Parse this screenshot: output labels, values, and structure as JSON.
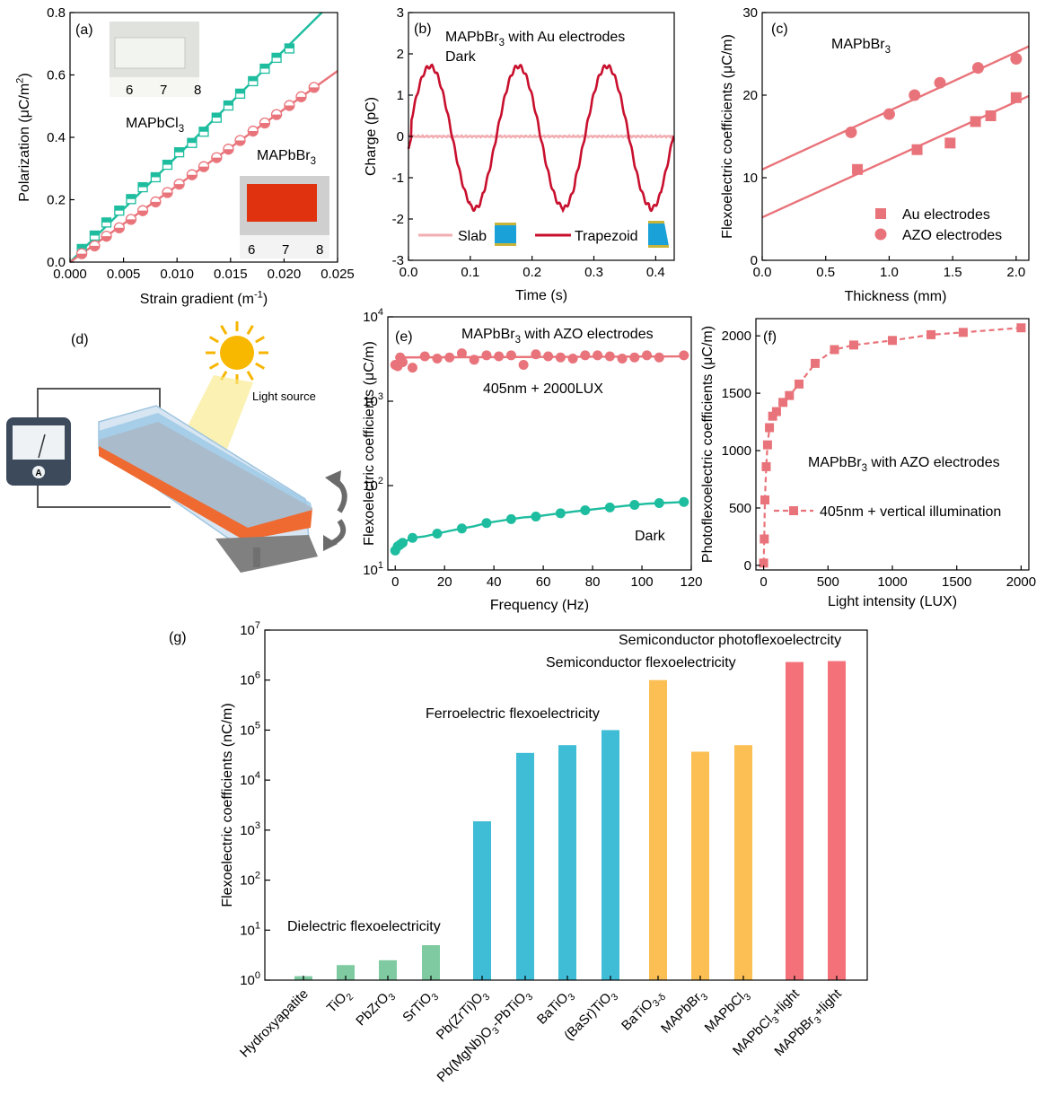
{
  "colors": {
    "teal": "#1ebd9f",
    "pink": "#e9737a",
    "lightpink": "#f2aeb2",
    "darkred": "#c8102e",
    "green_bar": "#7fcaa0",
    "blue_bar": "#3fbcd6",
    "orange_bar": "#fbbf53",
    "red_bar": "#f47179"
  },
  "panels": {
    "a": {
      "label": "(a)"
    },
    "b": {
      "label": "(b)"
    },
    "c": {
      "label": "(c)"
    },
    "d": {
      "label": "(d)",
      "light_source": "Light source",
      "meter_label": "A"
    },
    "e": {
      "label": "(e)"
    },
    "f": {
      "label": "(f)"
    },
    "g": {
      "label": "(g)"
    }
  },
  "chart_data": [
    {
      "id": "a",
      "type": "scatter",
      "xlabel": "Strain gradient (m-1)",
      "ylabel": "Polarization (μC/m2)",
      "xlim": [
        0,
        0.025
      ],
      "ylim": [
        0,
        0.8
      ],
      "xticks": [
        "0.000",
        "0.005",
        "0.010",
        "0.015",
        "0.020",
        "0.025"
      ],
      "yticks": [
        "0.0",
        "0.2",
        "0.4",
        "0.6",
        "0.8"
      ],
      "series": [
        {
          "name": "MAPbCl3",
          "marker": "square-half",
          "color": "#1ebd9f",
          "slope": 34.0,
          "x": [
            0.0011,
            0.0023,
            0.0034,
            0.0046,
            0.0057,
            0.0068,
            0.008,
            0.0091,
            0.0102,
            0.0114,
            0.0125,
            0.0137,
            0.0148,
            0.0159,
            0.0171,
            0.0182,
            0.0193,
            0.0205
          ],
          "y": [
            0.042,
            0.085,
            0.127,
            0.165,
            0.202,
            0.24,
            0.272,
            0.312,
            0.352,
            0.382,
            0.418,
            0.463,
            0.502,
            0.54,
            0.58,
            0.62,
            0.655,
            0.685
          ]
        },
        {
          "name": "MAPbBr3",
          "marker": "circle-half",
          "color": "#e9737a",
          "slope": 24.5,
          "x": [
            0.0011,
            0.0023,
            0.0034,
            0.0046,
            0.0057,
            0.0068,
            0.008,
            0.0091,
            0.0102,
            0.0114,
            0.0125,
            0.0137,
            0.0148,
            0.0159,
            0.0171,
            0.0182,
            0.0193,
            0.0205,
            0.0216,
            0.0228
          ],
          "y": [
            0.027,
            0.052,
            0.083,
            0.11,
            0.137,
            0.165,
            0.193,
            0.223,
            0.25,
            0.28,
            0.306,
            0.335,
            0.362,
            0.39,
            0.42,
            0.446,
            0.473,
            0.502,
            0.53,
            0.56
          ]
        }
      ],
      "annotations": [
        "MAPbCl3",
        "MAPbBr3"
      ],
      "photo_rulers": [
        [
          "6",
          "7",
          "8"
        ],
        [
          "6",
          "7",
          "8"
        ]
      ]
    },
    {
      "id": "b",
      "type": "line",
      "title": "MAPbBr3 with Au electrodes",
      "subtitle": "Dark",
      "xlabel": "Time (s)",
      "ylabel": "Charge (pC)",
      "xlim": [
        0,
        0.43
      ],
      "ylim": [
        -3,
        3
      ],
      "xticks": [
        "0.0",
        "0.1",
        "0.2",
        "0.3",
        "0.4"
      ],
      "yticks": [
        "-3",
        "-2",
        "-1",
        "0",
        "1",
        "2",
        "3"
      ],
      "series": [
        {
          "name": "Slab",
          "color": "#f2aeb2",
          "amplitude": 0.0
        },
        {
          "name": "Trapezoid",
          "color": "#c8102e",
          "amplitude": 1.7,
          "period": 0.143,
          "peak_t": 0.035
        }
      ]
    },
    {
      "id": "c",
      "type": "scatter",
      "title": "MAPbBr3",
      "xlabel": "Thickness (mm)",
      "ylabel": "Flexoelectric coefficients (μC/m)",
      "xlim": [
        0,
        2.1
      ],
      "ylim": [
        0,
        30
      ],
      "xticks": [
        "0.0",
        "0.5",
        "1.0",
        "1.5",
        "2.0"
      ],
      "yticks": [
        "0",
        "10",
        "20",
        "30"
      ],
      "series": [
        {
          "name": "Au electrodes",
          "marker": "square",
          "color": "#e9737a",
          "x": [
            0.75,
            1.22,
            1.48,
            1.68,
            1.8,
            2.0
          ],
          "y": [
            11.0,
            13.4,
            14.2,
            16.8,
            17.5,
            19.7
          ],
          "fit": [
            5.2,
            7.0
          ]
        },
        {
          "name": "AZO electrodes",
          "marker": "circle",
          "color": "#e9737a",
          "x": [
            0.7,
            1.0,
            1.2,
            1.4,
            1.7,
            2.0
          ],
          "y": [
            15.5,
            17.7,
            20.0,
            21.5,
            23.3,
            24.4
          ],
          "fit": [
            11.0,
            7.1
          ]
        }
      ]
    },
    {
      "id": "e",
      "type": "scatter",
      "yscale": "log",
      "title": "MAPbBr3 with AZO electrodes",
      "xlabel": "Frequency (Hz)",
      "ylabel": "Flexoelectric coefficients (μC/m)",
      "xlim": [
        -3,
        120
      ],
      "ylim": [
        10,
        10000
      ],
      "xticks": [
        "0",
        "20",
        "40",
        "60",
        "80",
        "100",
        "120"
      ],
      "yticks": [
        "10",
        "100",
        "1000",
        "10000"
      ],
      "series": [
        {
          "name": "405nm + 2000LUX",
          "color": "#e9737a",
          "x": [
            0,
            1,
            2,
            3,
            7,
            12,
            17,
            22,
            27,
            32,
            37,
            42,
            47,
            52,
            57,
            62,
            67,
            72,
            77,
            82,
            87,
            92,
            97,
            102,
            107,
            117
          ],
          "y": [
            2700,
            2600,
            3300,
            2900,
            2500,
            3400,
            3200,
            3300,
            3700,
            3100,
            3500,
            3400,
            3500,
            2700,
            3600,
            3400,
            3300,
            3200,
            3500,
            3500,
            3400,
            3200,
            3300,
            3500,
            3300,
            3500
          ]
        },
        {
          "name": "Dark",
          "color": "#1ebd9f",
          "x": [
            0,
            1,
            2,
            3,
            7,
            12,
            17,
            22,
            27,
            32,
            37,
            42,
            47,
            52,
            57,
            62,
            67,
            72,
            77,
            82,
            87,
            92,
            97,
            102,
            107,
            112,
            117
          ],
          "y": [
            17,
            19,
            20,
            21,
            24,
            25,
            27,
            29,
            31,
            33,
            36,
            38,
            40,
            42,
            43,
            45,
            47,
            49,
            51,
            53,
            55,
            57,
            59,
            61,
            62,
            63,
            64
          ]
        }
      ]
    },
    {
      "id": "f",
      "type": "line",
      "title": "MAPbBr3 with AZO electrodes",
      "legend": "405nm + vertical illumination",
      "xlabel": "Light intensity (LUX)",
      "ylabel": "Photoflexoelectric coefficients (μC/m)",
      "xlim": [
        -60,
        2060
      ],
      "ylim": [
        -40,
        2150
      ],
      "xticks": [
        "0",
        "500",
        "1000",
        "1500",
        "2000"
      ],
      "yticks": [
        "0",
        "500",
        "1000",
        "1500",
        "2000"
      ],
      "series": [
        {
          "name": "405nm + vertical illumination",
          "color": "#e9737a",
          "x": [
            0,
            5,
            10,
            20,
            30,
            45,
            70,
            100,
            150,
            200,
            275,
            400,
            550,
            700,
            1000,
            1300,
            1550,
            2000
          ],
          "y": [
            20,
            230,
            570,
            860,
            1050,
            1200,
            1300,
            1340,
            1420,
            1480,
            1580,
            1760,
            1880,
            1920,
            1960,
            2010,
            2030,
            2070
          ]
        }
      ]
    },
    {
      "id": "g",
      "type": "bar",
      "yscale": "log",
      "ylabel": "Flexoelectric coefficients (nC/m)",
      "ylim": [
        1,
        10000000
      ],
      "yticks": [
        "10^0",
        "10^1",
        "10^2",
        "10^3",
        "10^4",
        "10^5",
        "10^6",
        "10^7"
      ],
      "categories": [
        "Hydroxyapatite",
        "TiO2",
        "PbZrO3",
        "SrTiO3",
        "Pb(ZrTi)O3",
        "Pb(MgNb)O3-PbTiO3",
        "BaTiO3",
        "(BaSr)TiO3",
        "BaTiO3-δ",
        "MAPbBr3",
        "MAPbCl3",
        "MAPbCl3+light",
        "MAPbBr3+light"
      ],
      "values": [
        1.2,
        2.0,
        2.5,
        5.0,
        1500,
        35000,
        50000,
        100000,
        1000000,
        37000,
        50000,
        2300000,
        2400000
      ],
      "groups": [
        "Dielectric flexoelectricity",
        "Ferroelectric flexoelectricity",
        "Semiconductor flexoelectricity",
        "Semiconductor photoflexoelectrcity"
      ]
    }
  ]
}
